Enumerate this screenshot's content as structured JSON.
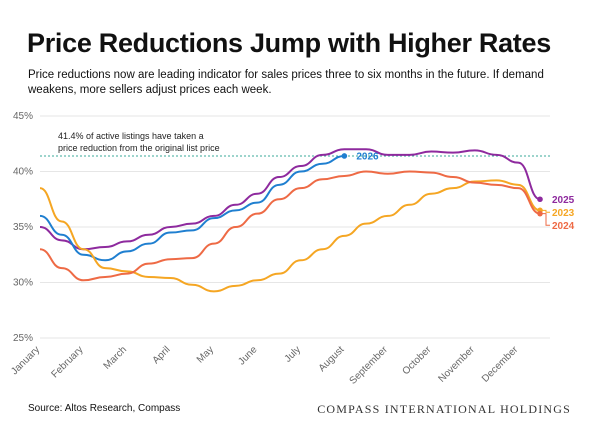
{
  "chart_data": {
    "type": "line",
    "title": "Price Reductions Jump with Higher Rates",
    "subtitle": "Price reductions now are leading indicator for sales prices three to six months in the future. If demand weakens, more sellers adjust prices each week.",
    "categories": [
      "January",
      null,
      "February",
      null,
      "March",
      null,
      "April",
      null,
      "May",
      null,
      "June",
      null,
      "July",
      null,
      "August",
      null,
      "September",
      null,
      "October",
      null,
      "November",
      null,
      "December",
      null
    ],
    "series": [
      {
        "name": "2025",
        "color": "#8e2a9e",
        "values": [
          35,
          33.8,
          33,
          33.2,
          33.7,
          34.3,
          35,
          35.3,
          36,
          37,
          38,
          39.5,
          40.5,
          41.5,
          42,
          42,
          41.5,
          41.5,
          41.8,
          41.7,
          41.9,
          41.5,
          40.8,
          37.5
        ]
      },
      {
        "name": "2026",
        "color": "#1f7fd0",
        "values": [
          36,
          34.3,
          32.5,
          32,
          32.8,
          33.5,
          34.5,
          34.7,
          35.8,
          36.5,
          37.2,
          38.8,
          40,
          40.7,
          41.4,
          null,
          null,
          null,
          null,
          null,
          null,
          null,
          null,
          null
        ]
      },
      {
        "name": "2023",
        "color": "#f5a623",
        "values": [
          38.5,
          35.5,
          33,
          31.3,
          31,
          30.5,
          30.4,
          29.8,
          29.2,
          29.7,
          30.2,
          30.8,
          32,
          33,
          34.2,
          35.3,
          36,
          37,
          38,
          38.5,
          39.1,
          39.2,
          38.8,
          36.5
        ]
      },
      {
        "name": "2024",
        "color": "#ee6a45",
        "values": [
          33,
          31.3,
          30.2,
          30.5,
          30.8,
          31.7,
          32.1,
          32.2,
          33.5,
          35,
          36.2,
          37.5,
          38.5,
          39.3,
          39.6,
          40,
          39.8,
          40,
          39.9,
          39.5,
          39,
          38.8,
          38.5,
          36.2
        ]
      }
    ],
    "ylim": [
      25,
      45
    ],
    "yticks": [
      {
        "value": 25,
        "label": "25%"
      },
      {
        "value": 30,
        "label": "30%"
      },
      {
        "value": 35,
        "label": "35%"
      },
      {
        "value": 40,
        "label": "40%"
      },
      {
        "value": 45,
        "label": "45%"
      }
    ],
    "grid": true,
    "reference_line": 41.4,
    "annotation": [
      "41.4% of active listings have taken a",
      "price reduction from the original list price"
    ],
    "source": "Source: Altos Research, Compass",
    "brand": "COMPASS INTERNATIONAL HOLDINGS"
  }
}
